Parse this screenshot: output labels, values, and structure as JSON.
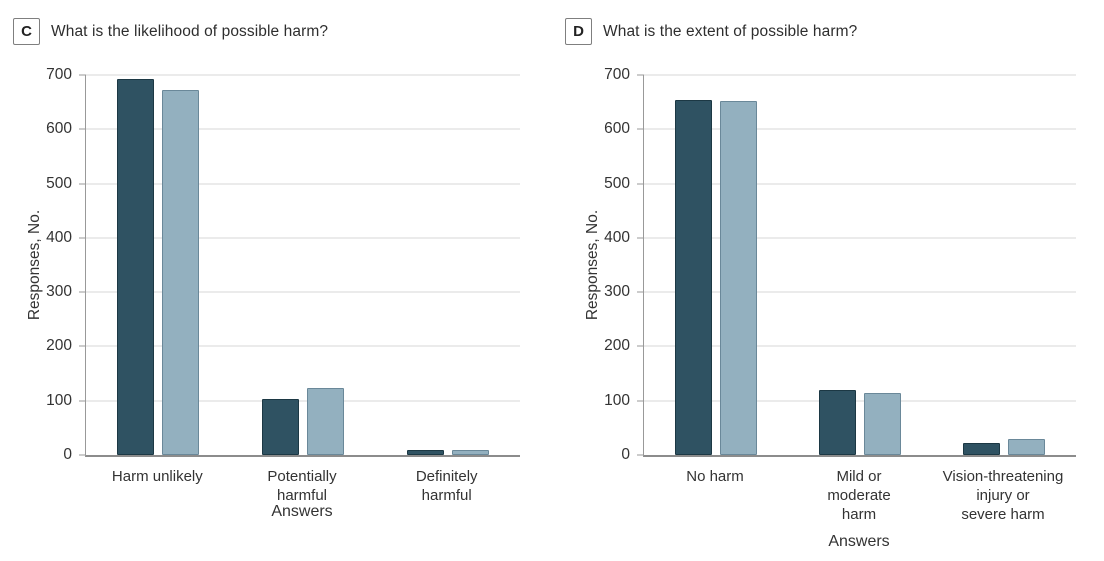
{
  "colors": {
    "series1_fill": "#2F5262",
    "series1_border": "#1C3844",
    "series2_fill": "#93B0BF",
    "series2_border": "#6A8899",
    "gridline": "#EBEBEB",
    "axis": "#999999",
    "text": "#333333"
  },
  "chart_data": [
    {
      "panel_letter": "C",
      "type": "bar",
      "title": "What is the likelihood of possible harm?",
      "ylabel": "Responses, No.",
      "xlabel": "Answers",
      "ylim": [
        0,
        700
      ],
      "ytick_step": 100,
      "grid": true,
      "legend": "none",
      "categories": [
        "Harm unlikely",
        "Potentially\nharmful",
        "Definitely\nharmful"
      ],
      "series": [
        {
          "name": "series-1-dark",
          "color": "#2F5262",
          "border": "#1C3844",
          "values": [
            692,
            103,
            9
          ]
        },
        {
          "name": "series-2-light",
          "color": "#93B0BF",
          "border": "#6A8899",
          "values": [
            672,
            123,
            10
          ]
        }
      ]
    },
    {
      "panel_letter": "D",
      "type": "bar",
      "title": "What is the extent of possible harm?",
      "ylabel": "Responses, No.",
      "xlabel": "Answers",
      "ylim": [
        0,
        700
      ],
      "ytick_step": 100,
      "grid": true,
      "legend": "none",
      "categories": [
        "No harm",
        "Mild or\nmoderate\nharm",
        "Vision-threatening\ninjury or\nsevere harm"
      ],
      "series": [
        {
          "name": "series-1-dark",
          "color": "#2F5262",
          "border": "#1C3844",
          "values": [
            654,
            120,
            22
          ]
        },
        {
          "name": "series-2-light",
          "color": "#93B0BF",
          "border": "#6A8899",
          "values": [
            652,
            115,
            29
          ]
        }
      ]
    }
  ]
}
